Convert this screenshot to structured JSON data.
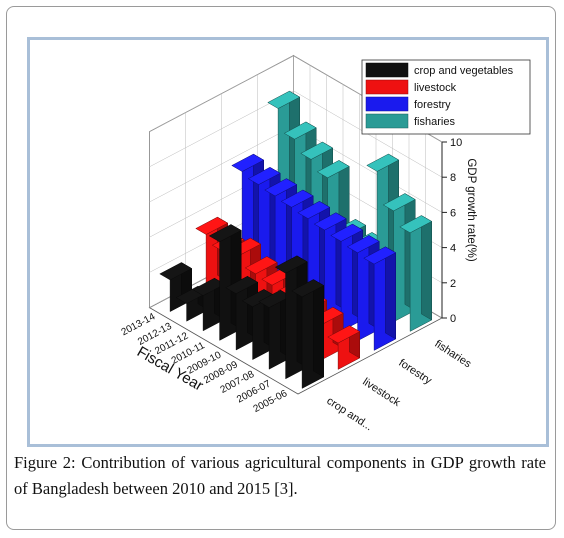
{
  "caption": {
    "label": "Figure 2:",
    "text": "Contribution of various agricultural components in GDP growth rate of Bangladesh between 2010 and 2015 [3]."
  },
  "chart_data": {
    "type": "bar3d",
    "xlabel": "Fiscal Year",
    "zlabel": "GDP growth rate(%)",
    "zlim": [
      0,
      10
    ],
    "zticks": [
      "0",
      "2",
      "4",
      "6",
      "8",
      "10"
    ],
    "categories": [
      "2005-06",
      "2006-07",
      "2007-08",
      "2008-09",
      "2009-10",
      "2010-11",
      "2011-12",
      "2012-13",
      "2013-14"
    ],
    "components": [
      "crop and...",
      "livestock",
      "forestry",
      "fisharies"
    ],
    "series": [
      {
        "name": "crop and vegetables",
        "color": "#111111",
        "values": [
          5.2,
          6.0,
          3.5,
          3.0,
          3.2,
          5.6,
          2.0,
          1.0,
          1.8
        ]
      },
      {
        "name": "livestock",
        "color": "#ee1111",
        "values": [
          1.5,
          2.0,
          2.2,
          2.5,
          2.6,
          2.7,
          3.2,
          2.9,
          3.3
        ]
      },
      {
        "name": "forestry",
        "color": "#1a1aee",
        "values": [
          4.9,
          5.0,
          5.1,
          5.2,
          5.3,
          5.4,
          5.5,
          5.6,
          5.8
        ]
      },
      {
        "name": "fisharies",
        "color": "#2a9b96",
        "values": [
          5.6,
          6.3,
          8.0,
          3.0,
          3.2,
          6.0,
          6.5,
          7.1,
          8.3
        ]
      }
    ],
    "legend_position": "top-right"
  }
}
